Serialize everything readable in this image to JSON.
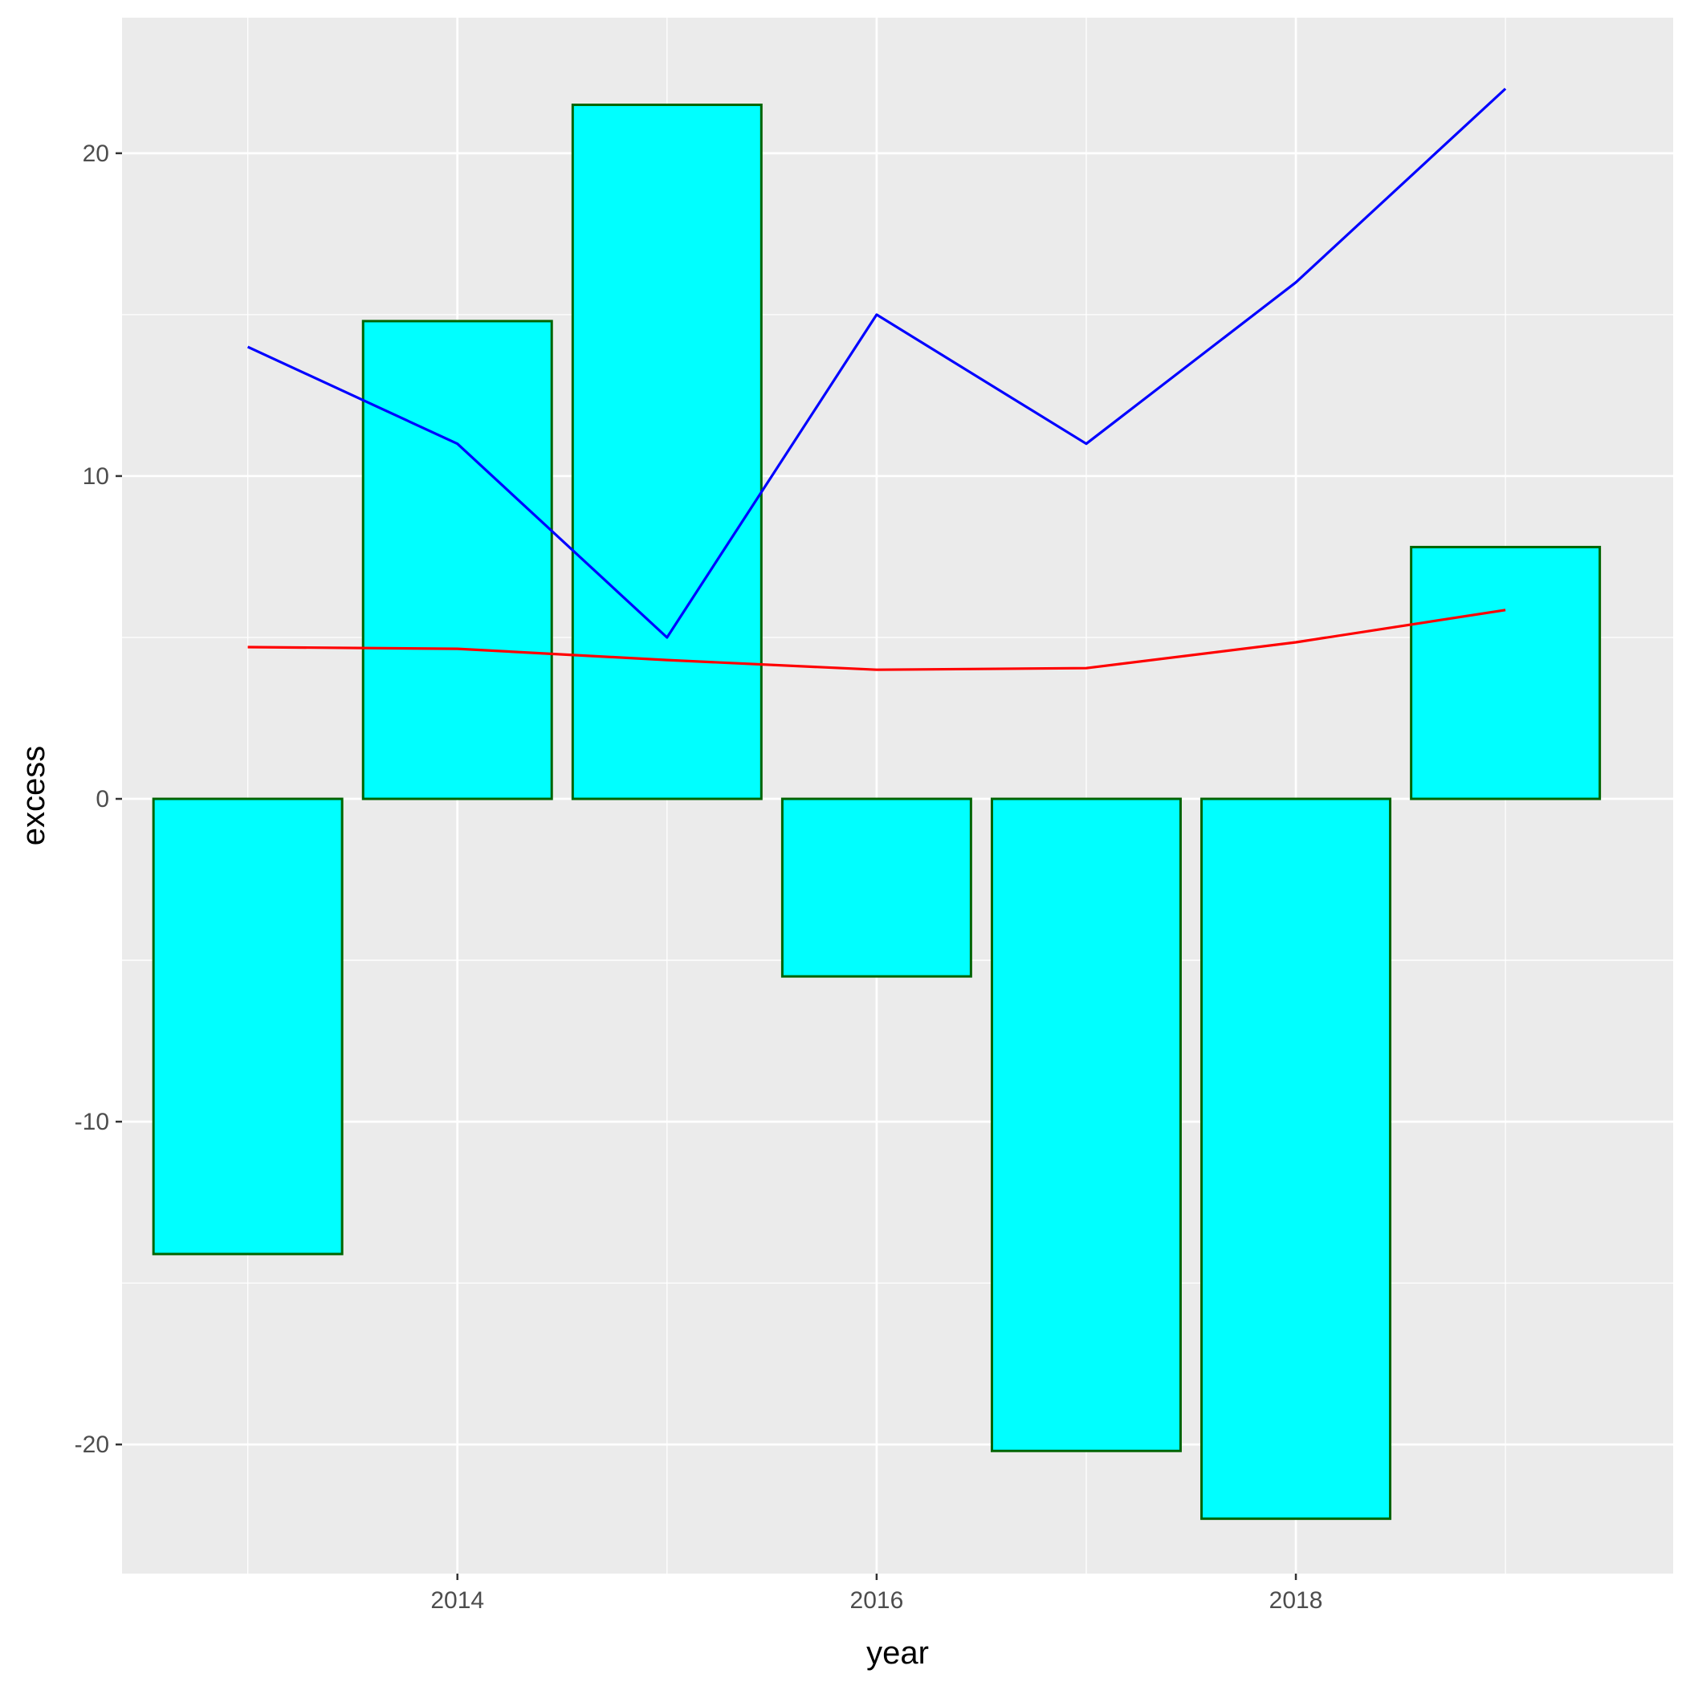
{
  "chart_data": {
    "type": "bar",
    "xlabel": "year",
    "ylabel": "excess",
    "x": [
      2013,
      2014,
      2015,
      2016,
      2017,
      2018,
      2019
    ],
    "bars": {
      "values": [
        -14.1,
        14.8,
        21.5,
        -5.5,
        -20.2,
        -22.3,
        7.8
      ],
      "fill": "#00FFFF",
      "outline": "#006400"
    },
    "lines": [
      {
        "values": [
          14.0,
          11.0,
          5.0,
          15.0,
          11.0,
          16.0,
          22.0
        ],
        "color": "#0000FF"
      },
      {
        "values": [
          4.7,
          4.65,
          4.3,
          4.0,
          4.05,
          4.85,
          5.85
        ],
        "color": "#FF0000"
      }
    ],
    "xlim": [
      2012.4,
      2019.8
    ],
    "ylim": [
      -24.0,
      24.2
    ],
    "x_ticks": [
      2014,
      2016,
      2018
    ],
    "x_tick_labels": [
      "2014",
      "2016",
      "2018"
    ],
    "y_ticks": [
      -20,
      -10,
      0,
      10,
      20
    ],
    "y_tick_labels": [
      "-20",
      "-10",
      "0",
      "10",
      "20"
    ],
    "grid": true,
    "panel_background": "#EBEBEB",
    "grid_color": "#FFFFFF"
  }
}
